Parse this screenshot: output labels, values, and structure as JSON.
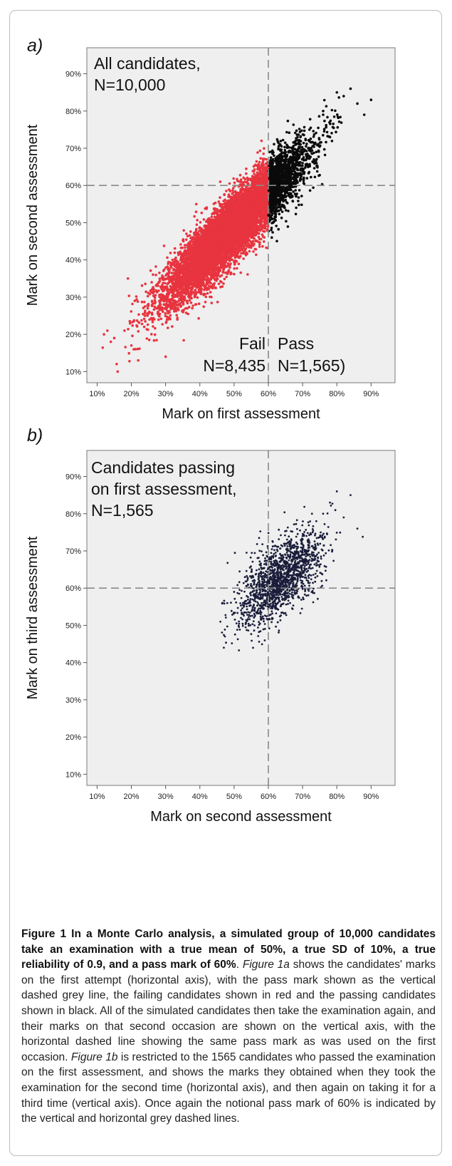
{
  "figure": {
    "panel_a_label": "a)",
    "panel_b_label": "b)",
    "caption": {
      "title": "Figure 1 In a Monte Carlo analysis, a simulated group of 10,000 candidates take an examination with a true mean of 50%, a true SD of 10%, a true reliability of 0.9, and a pass mark of 60%",
      "parts": [
        {
          "italic": false,
          "text": ". "
        },
        {
          "italic": true,
          "text": "Figure 1a"
        },
        {
          "italic": false,
          "text": " shows the candidates' marks on the first attempt (horizontal axis), with the pass mark shown as the vertical dashed grey line, the failing candidates shown in red and the passing candidates shown in black. All of the simulated candidates then take the examination again, and their marks on that second occasion are shown on the vertical axis, with the horizontal dashed line showing the same pass mark as was used on the first occasion. "
        },
        {
          "italic": true,
          "text": "Figure 1b"
        },
        {
          "italic": false,
          "text": " is restricted to the 1565 candidates who passed the examination on the first assessment, and shows the marks they obtained when they took the examination for the second time (horizontal axis), and then again on taking it for a third time (vertical axis). Once again the notional pass mark of 60% is indicated by the vertical and horizontal grey dashed lines."
        }
      ]
    }
  },
  "chart_data": [
    {
      "type": "scatter",
      "panel": "a",
      "xlabel": "Mark on first assessment",
      "ylabel": "Mark on second assessment",
      "xlim": [
        7,
        97
      ],
      "ylim": [
        7,
        97
      ],
      "x_ticks": [
        10,
        20,
        30,
        40,
        50,
        60,
        70,
        80,
        90
      ],
      "x_tick_labels": [
        "10%",
        "20%",
        "30%",
        "40%",
        "50%",
        "60%",
        "70%",
        "80%",
        "90%"
      ],
      "y_ticks": [
        10,
        20,
        30,
        40,
        50,
        60,
        70,
        80,
        90
      ],
      "y_tick_labels": [
        "10%",
        "20%",
        "30%",
        "40%",
        "50%",
        "60%",
        "70%",
        "80%",
        "90%"
      ],
      "pass_mark": 60,
      "grid": false,
      "reference_lines": "dashed grey at x=60 and y=60",
      "annotation_text": {
        "title_line1": "All candidates,",
        "title_line2": "N=10,000",
        "fail_line1": "Fail",
        "fail_line2": "N=8,435",
        "pass_line1": "Pass",
        "pass_line2": "N=1,565)"
      },
      "colors": {
        "fail": "#e8343f",
        "pass": "#0a0a0a",
        "background": "#efefef",
        "frame": "#7a7a7a",
        "reference": "#8a8a8a"
      },
      "series": [
        {
          "group": "fail",
          "n": 8435,
          "mean_x": 46,
          "mean_y": 47,
          "sd": 9.5,
          "correlation": 0.9,
          "x_range": [
            12,
            60
          ]
        },
        {
          "group": "pass",
          "n": 1565,
          "mean_x": 65,
          "mean_y": 63.5,
          "x_range": [
            60,
            90
          ]
        }
      ],
      "sample_points": {
        "fail": [
          [
            12,
            20
          ],
          [
            13,
            21
          ],
          [
            14,
            18
          ],
          [
            15,
            19
          ],
          [
            16,
            10
          ],
          [
            18,
            21
          ],
          [
            19,
            35
          ],
          [
            20,
            17
          ],
          [
            21,
            29
          ],
          [
            22,
            13
          ],
          [
            24,
            25
          ],
          [
            26,
            32
          ],
          [
            28,
            34
          ],
          [
            30,
            14
          ],
          [
            31,
            29
          ],
          [
            32,
            40
          ],
          [
            35,
            38
          ],
          [
            38,
            44
          ],
          [
            40,
            36
          ],
          [
            42,
            47
          ],
          [
            45,
            50
          ],
          [
            48,
            53
          ],
          [
            50,
            49
          ],
          [
            52,
            58
          ],
          [
            55,
            60
          ],
          [
            57,
            65
          ],
          [
            58,
            72
          ]
        ],
        "pass": [
          [
            60,
            52
          ],
          [
            61,
            46
          ],
          [
            62,
            58
          ],
          [
            63,
            64
          ],
          [
            64,
            57
          ],
          [
            65,
            68
          ],
          [
            66,
            61
          ],
          [
            68,
            72
          ],
          [
            70,
            66
          ],
          [
            72,
            75
          ],
          [
            74,
            69
          ],
          [
            76,
            79
          ],
          [
            78,
            73
          ],
          [
            80,
            85
          ],
          [
            82,
            84
          ],
          [
            84,
            86
          ],
          [
            86,
            82
          ],
          [
            88,
            79
          ],
          [
            90,
            83
          ]
        ]
      }
    },
    {
      "type": "scatter",
      "panel": "b",
      "xlabel": "Mark on second assessment",
      "ylabel": "Mark on third assessment",
      "xlim": [
        7,
        97
      ],
      "ylim": [
        7,
        97
      ],
      "x_ticks": [
        10,
        20,
        30,
        40,
        50,
        60,
        70,
        80,
        90
      ],
      "x_tick_labels": [
        "10%",
        "20%",
        "30%",
        "40%",
        "50%",
        "60%",
        "70%",
        "80%",
        "90%"
      ],
      "y_ticks": [
        10,
        20,
        30,
        40,
        50,
        60,
        70,
        80,
        90
      ],
      "y_tick_labels": [
        "10%",
        "20%",
        "30%",
        "40%",
        "50%",
        "60%",
        "70%",
        "80%",
        "90%"
      ],
      "pass_mark": 60,
      "grid": false,
      "reference_lines": "dashed grey at x=60 and y=60",
      "annotation_text": {
        "title_line1": "Candidates passing",
        "title_line2": "on first assessment,",
        "title_line3": "N=1,565"
      },
      "colors": {
        "points": "#1a1d3a",
        "background": "#efefef",
        "frame": "#7a7a7a",
        "reference": "#8a8a8a"
      },
      "series": [
        {
          "group": "passed first",
          "n": 1565,
          "mean_x": 63.5,
          "mean_y": 62.5,
          "correlation": 0.65,
          "x_range": [
            46,
            87
          ],
          "y_range": [
            44,
            87
          ]
        }
      ],
      "sample_points": [
        [
          46,
          51
        ],
        [
          47,
          44
        ],
        [
          48,
          56
        ],
        [
          50,
          59
        ],
        [
          52,
          52
        ],
        [
          54,
          61
        ],
        [
          56,
          57
        ],
        [
          58,
          64
        ],
        [
          60,
          60
        ],
        [
          62,
          66
        ],
        [
          64,
          62
        ],
        [
          66,
          70
        ],
        [
          68,
          65
        ],
        [
          70,
          74
        ],
        [
          72,
          69
        ],
        [
          74,
          78
        ],
        [
          76,
          80
        ],
        [
          78,
          83
        ],
        [
          80,
          86
        ],
        [
          82,
          79
        ],
        [
          84,
          85
        ],
        [
          86,
          76
        ]
      ]
    }
  ]
}
